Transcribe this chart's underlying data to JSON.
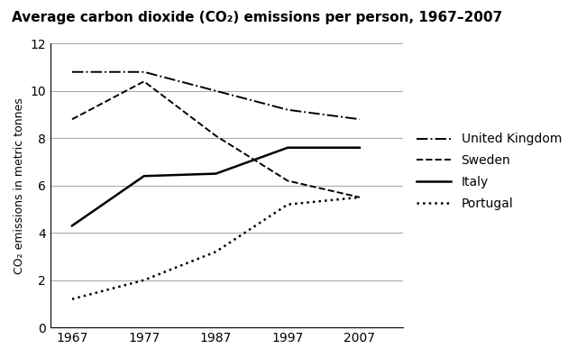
{
  "title": "Average carbon dioxide (CO₂) emissions per person, 1967–2007",
  "ylabel": "CO₂ emissions in metric tonnes",
  "years": [
    1967,
    1977,
    1987,
    1997,
    2007
  ],
  "series": {
    "United Kingdom": {
      "values": [
        10.8,
        10.8,
        10.0,
        9.2,
        8.8
      ],
      "linestyle": "-.",
      "linewidth": 1.4,
      "color": "#000000"
    },
    "Sweden": {
      "values": [
        8.8,
        10.4,
        8.1,
        6.2,
        5.5
      ],
      "linestyle": "--",
      "linewidth": 1.4,
      "color": "#000000"
    },
    "Italy": {
      "values": [
        4.3,
        6.4,
        6.5,
        7.6,
        7.6
      ],
      "linestyle": "-",
      "linewidth": 1.8,
      "color": "#000000"
    },
    "Portugal": {
      "values": [
        1.2,
        2.0,
        3.2,
        5.2,
        5.5
      ],
      "linestyle": ":",
      "linewidth": 1.8,
      "color": "#000000"
    }
  },
  "xlim": [
    1964,
    2013
  ],
  "ylim": [
    0,
    12
  ],
  "yticks": [
    0,
    2,
    4,
    6,
    8,
    10,
    12
  ],
  "xticks": [
    1967,
    1977,
    1987,
    1997,
    2007
  ],
  "grid_color": "#aaaaaa",
  "background_color": "#ffffff",
  "title_fontsize": 11,
  "title_fontweight": "bold",
  "axis_label_fontsize": 9,
  "tick_fontsize": 10,
  "legend_fontsize": 10
}
